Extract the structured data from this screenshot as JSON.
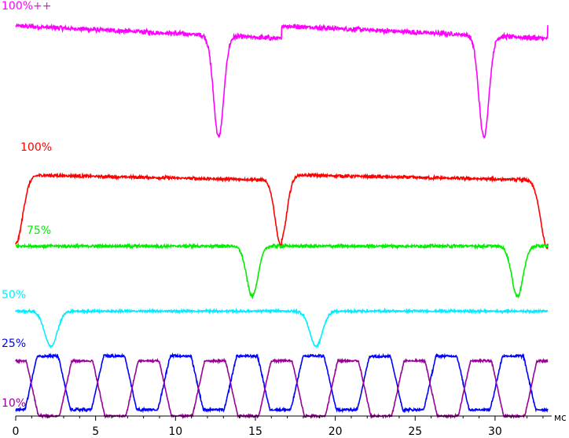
{
  "chart_data": {
    "type": "line",
    "xlabel": "",
    "x_unit": "мс",
    "ylabel": "",
    "xlim": [
      0,
      33.3
    ],
    "x_ticks": [
      0,
      5,
      10,
      15,
      20,
      25,
      30
    ],
    "grid": false,
    "legend": "labels at left of each trace",
    "series": [
      {
        "name": "100%++",
        "color": "#ff00ff",
        "baseline": 0.85,
        "dips": [
          {
            "at": 12.7,
            "depth": 0.95,
            "width": 0.45
          },
          {
            "at": 29.3,
            "depth": 0.95,
            "width": 0.45
          }
        ],
        "noise": 0.05,
        "drift": [
          0.92,
          0.8
        ]
      },
      {
        "name": "100%",
        "color": "#ff0000",
        "baseline": 0.85,
        "dips": [
          {
            "at": 0.0,
            "depth": 1.0,
            "width": 0.6
          },
          {
            "at": 16.6,
            "depth": 0.95,
            "width": 0.5
          },
          {
            "at": 33.3,
            "depth": 1.0,
            "width": 0.6
          }
        ],
        "noise": 0.05,
        "drift": [
          0.88,
          0.8
        ]
      },
      {
        "name": "75%",
        "color": "#00ee00",
        "baseline": 0.88,
        "dips": [
          {
            "at": 14.8,
            "depth": 0.9,
            "width": 0.5
          },
          {
            "at": 31.4,
            "depth": 0.9,
            "width": 0.5
          }
        ],
        "noise": 0.06,
        "drift": [
          0.88,
          0.88
        ]
      },
      {
        "name": "50%",
        "color": "#00eeff",
        "baseline": 0.85,
        "dips": [
          {
            "at": 2.2,
            "depth": 0.8,
            "width": 0.55
          },
          {
            "at": 18.8,
            "depth": 0.8,
            "width": 0.55
          }
        ],
        "noise": 0.06,
        "drift": [
          0.85,
          0.85
        ]
      },
      {
        "name": "25%",
        "color": "#0000ff",
        "baseline": 0.9,
        "period": 4.16,
        "phase": 2.0,
        "low": 0.0,
        "high": 0.9,
        "noise": 0.05
      },
      {
        "name": "10%",
        "color": "#990099",
        "baseline": 0.85,
        "period": 4.16,
        "phase": 0.0,
        "low": 0.0,
        "high": 0.9,
        "noise": 0.04
      }
    ]
  }
}
